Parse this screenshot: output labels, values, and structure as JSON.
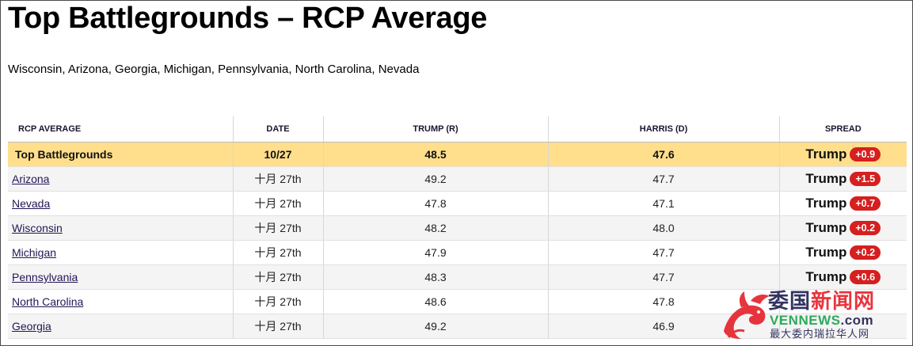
{
  "page": {
    "title": "Top Battlegrounds – RCP Average",
    "subtitle": "Wisconsin, Arizona, Georgia, Michigan, Pennsylvania, North Carolina, Nevada"
  },
  "table": {
    "headers": [
      "RCP AVERAGE",
      "DATE",
      "TRUMP (R)",
      "HARRIS (D)",
      "SPREAD"
    ],
    "average_row": {
      "name": "Top Battlegrounds",
      "date": "10/27",
      "trump": "48.5",
      "harris": "47.6",
      "spread_name": "Trump",
      "spread_value": "+0.9"
    },
    "rows": [
      {
        "name": "Arizona",
        "date": "十月 27th",
        "trump": "49.2",
        "harris": "47.7",
        "spread_name": "Trump",
        "spread_value": "+1.5"
      },
      {
        "name": "Nevada",
        "date": "十月 27th",
        "trump": "47.8",
        "harris": "47.1",
        "spread_name": "Trump",
        "spread_value": "+0.7"
      },
      {
        "name": "Wisconsin",
        "date": "十月 27th",
        "trump": "48.2",
        "harris": "48.0",
        "spread_name": "Trump",
        "spread_value": "+0.2"
      },
      {
        "name": "Michigan",
        "date": "十月 27th",
        "trump": "47.9",
        "harris": "47.7",
        "spread_name": "Trump",
        "spread_value": "+0.2"
      },
      {
        "name": "Pennsylvania",
        "date": "十月 27th",
        "trump": "48.3",
        "harris": "47.7",
        "spread_name": "Trump",
        "spread_value": "+0.6"
      },
      {
        "name": "North Carolina",
        "date": "十月 27th",
        "trump": "48.6",
        "harris": "47.8",
        "spread_name": "",
        "spread_value": ""
      },
      {
        "name": "Georgia",
        "date": "十月 27th",
        "trump": "49.2",
        "harris": "46.9",
        "spread_name": "",
        "spread_value": ""
      }
    ]
  },
  "watermark": {
    "chinese_dark": "委国",
    "chinese_red": "新闻网",
    "latin_main": "VENNEWS",
    "latin_domain": ".com",
    "tagline": "最大委内瑞拉华人网"
  },
  "colors": {
    "average_row_bg": "#ffdf8c",
    "spread_badge": "#d61f1f",
    "link": "#241555"
  },
  "icons": {
    "watermark_logo": "dragon-logo-icon"
  }
}
